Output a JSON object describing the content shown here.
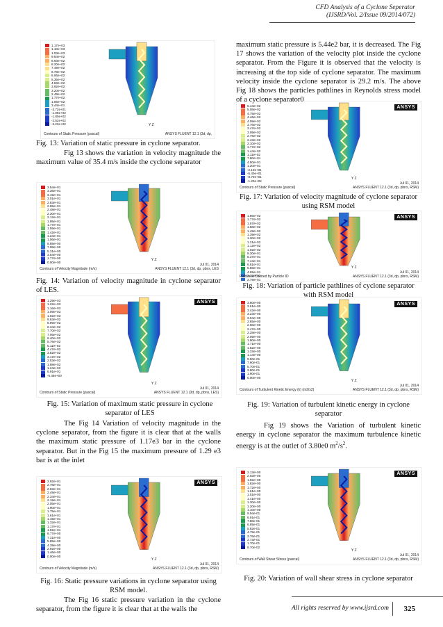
{
  "header": {
    "line1": "CFD Analysis of a Cyclone Seperator",
    "line2": "(IJSRD/Vol. 2/Issue 09/2014/072)"
  },
  "figures": [
    {
      "id": "fig13",
      "legend": [
        "1.17e+03",
        "1.10e+03",
        "1.03e+03",
        "9.64e+02",
        "8.93e+02",
        "8.20e+02",
        "7.49e+02",
        "6.78e+02",
        "6.06e+02",
        "5.35e+02",
        "4.63e+02",
        "3.92e+02",
        "3.20e+02",
        "2.49e+02",
        "1.77e+02",
        "1.06e+02",
        "3.44e+01",
        "-3.72e+01",
        "-1.09e+02",
        "-1.80e+02",
        "-2.52e+02",
        "-3.23e+02"
      ],
      "contour": "Contours of Static Pressure (pascal)",
      "software": "ANSYS FLUENT 12.1 (3d, dp,",
      "date": "",
      "logo": ""
    },
    {
      "id": "fig14",
      "legend": [
        "3.54e+01",
        "3.36e+01",
        "3.19e+01",
        "3.01e+01",
        "2.83e+01",
        "2.65e+01",
        "2.48e+01",
        "2.30e+01",
        "2.12e+01",
        "1.95e+01",
        "1.77e+01",
        "1.59e+01",
        "1.42e+01",
        "1.24e+01",
        "1.06e+01",
        "8.85e+00",
        "7.08e+00",
        "5.31e+00",
        "3.54e+00",
        "1.77e+00",
        "0.00e+00"
      ],
      "contour": "Contours of Velocity Magnitude (m/s)",
      "software": "ANSYS FLUENT 12.1 (3d, dp, pbns, LES",
      "date": "Jul 01, 2014",
      "logo": ""
    },
    {
      "id": "fig15",
      "legend": [
        "1.29e+03",
        "1.22e+03",
        "1.16e+03",
        "1.09e+03",
        "1.02e+03",
        "9.63e+02",
        "8.99e+02",
        "8.34e+02",
        "7.70e+02",
        "7.05e+02",
        "6.40e+02",
        "5.76e+02",
        "5.11e+02",
        "4.47e+02",
        "3.82e+02",
        "3.17e+02",
        "2.53e+02",
        "1.88e+02",
        "1.24e+02",
        "5.91e+01",
        "-5.46e+00"
      ],
      "contour": "Contours of Static Pressure (pascal)",
      "software": "ANSYS FLUENT 12.1 (3d, dp, pbns, LES)",
      "date": "Jul 01, 2014",
      "logo": "ANSYS"
    },
    {
      "id": "fig16",
      "legend": [
        "2.92e+01",
        "2.78e+01",
        "2.63e+01",
        "2.49e+01",
        "2.34e+01",
        "2.19e+01",
        "2.05e+01",
        "1.90e+01",
        "1.75e+01",
        "1.61e+01",
        "1.46e+01",
        "1.32e+01",
        "1.17e+01",
        "1.02e+01",
        "8.77e+00",
        "7.31e+00",
        "5.85e+00",
        "4.39e+00",
        "2.92e+00",
        "1.46e+00",
        "0.00e+00"
      ],
      "contour": "Contours of Velocity Magnitude (m/s)",
      "software": "ANSYS FLUENT 12.1 (3d, dp, pbns, RSM)",
      "date": "Jul 01, 2014",
      "logo": "ANSYS"
    },
    {
      "id": "fig17",
      "legend": [
        "5.44e+02",
        "5.08e+02",
        "4.75e+02",
        "4.46e+02",
        "4.09e+02",
        "3.76e+02",
        "3.47e+02",
        "3.09e+02",
        "2.76e+02",
        "2.43e+02",
        "2.10e+02",
        "1.77e+02",
        "1.44e+02",
        "1.11e+02",
        "7.80e+01",
        "4.50e+01",
        "1.20e+01",
        "-2.10e+01",
        "-5.40e+01",
        "-8.70e+01",
        "-1.20e+02"
      ],
      "contour": "Contours of Static Pressure (pascal)",
      "software": "ANSYS FLUENT 12.1 (3d, dp, pbns, RSM)",
      "date": "Jul 01, 2014",
      "logo": "ANSYS"
    },
    {
      "id": "fig18",
      "legend": [
        "1.86e+02",
        "1.77e+02",
        "1.67e+02",
        "1.58e+02",
        "1.49e+02",
        "1.39e+02",
        "1.30e+02",
        "1.21e+02",
        "1.12e+02",
        "1.02e+02",
        "9.30e+01",
        "8.37e+01",
        "7.44e+01",
        "6.51e+01",
        "5.58e+01",
        "4.65e+01",
        "3.72e+01",
        "2.79e+01",
        "1.86e+01",
        "9.30e+00",
        "0.00e+00"
      ],
      "contour": "Pathlines Colored by Particle ID",
      "software": "ANSYS FLUENT 12.1 (3d, dp, pbns, RSM)",
      "date": "Jul 01, 2014",
      "logo": "ANSYS"
    },
    {
      "id": "fig19",
      "legend": [
        "3.80e+00",
        "3.61e+00",
        "3.42e+00",
        "3.23e+00",
        "3.04e+00",
        "2.85e+00",
        "2.66e+00",
        "2.47e+00",
        "2.28e+00",
        "2.09e+00",
        "1.90e+00",
        "1.71e+00",
        "1.52e+00",
        "1.33e+00",
        "1.14e+00",
        "9.50e-01",
        "7.60e-01",
        "5.70e-01",
        "3.80e-01",
        "1.90e-01",
        "0.00e+00"
      ],
      "contour": "Contours of Turbulent Kinetic Energy (k) (m2/s2)",
      "software": "ANSYS FLUENT 12.1 (3d, dp, pbns, RSM)",
      "date": "Jul 01, 2014",
      "logo": "ANSYS"
    },
    {
      "id": "fig20",
      "legend": [
        "2.13e+00",
        "2.03e+00",
        "1.92e+00",
        "1.82e+00",
        "1.72e+00",
        "1.61e+00",
        "1.51e+00",
        "1.41e+00",
        "1.30e+00",
        "1.20e+00",
        "1.10e+00",
        "9.94e-01",
        "8.91e-01",
        "7.88e-01",
        "6.85e-01",
        "5.82e-01",
        "4.79e-01",
        "3.76e-01",
        "2.73e-01",
        "1.70e-01",
        "6.70e-02"
      ],
      "contour": "Contours of Wall Shear Stress (pascal)",
      "software": "ANSYS FLUENT 12.1 (3d, dp, pbns, RSM)",
      "date": "Jul 01, 2014",
      "logo": "ANSYS"
    }
  ],
  "captions": {
    "fig13": "Fig. 13: Variation of static pressure in cyclone separator.",
    "fig14": "Fig. 14: Variation of velocity magnitude in cyclone separator of LES.",
    "fig15": "Fig. 15: Variation of maximum static pressure in cyclone separator of LES",
    "fig16": "Fig. 16: Static pressure variations in cyclone separator using RSM model.",
    "fig17": "Fig. 17: Variation of velocity magnitude of cyclone separator using RSM model",
    "fig18": "Fig. 18: Variation of particle pathlines of cyclone separator with RSM model",
    "fig19": "Fig. 19: Variation of turbulent kinetic energy in cyclone separator",
    "fig20": "Fig. 20: Variation of wall shear stress in cyclone separator"
  },
  "paragraphs": {
    "p1": "Fig 13 shows the variation in velocity magnitude the maximum value of 35.4 m/s inside the cyclone separator",
    "p2": "The Fig 14 Variation of velocity magnitude in the cyclone separator, from the figure it is clear that at the walls the maximum static pressure of 1.17e3 bar in the cyclone separator. But in the Fig 15 the maximum pressure of 1.29 e3 bar is at the inlet",
    "p3": "The Fig 16 static pressure variation in the cyclone separator, from the figure it is clear that at the walls the",
    "p4": "maximum static pressure is 5.44e2 bar, it is decreased. The Fig 17 shows the variation of the velocity plot inside the cyclone separator. From the Figure it is observed that the velocity is increasing at the top side of cyclone separator. The maximum velocity inside the cyclone separator is 29.2 m/s. The above Fig 18 shows the particles pathlines in Reynolds stress model of a cyclone separator0",
    "p5_a": "Fig 19 shows the Variation of turbulent kinetic energy in cyclone separator the maximum turbulence kinetic energy is at the outlet of 3.80e0 m",
    "p5_sup1": "2",
    "p5_mid": "/s",
    "p5_sup2": "2",
    "p5_end": "."
  },
  "footer": {
    "rights": "All rights reserved by www.ijsrd.com",
    "page": "325"
  },
  "colors": {
    "scale": [
      "#d7191c",
      "#f46d43",
      "#fdae61",
      "#fee08b",
      "#ffffbf",
      "#d9ef8b",
      "#a6d96a",
      "#66bd63",
      "#1a9850",
      "#1c9fc0",
      "#2b6cd1",
      "#1f3cc8",
      "#0a1a9e"
    ]
  }
}
